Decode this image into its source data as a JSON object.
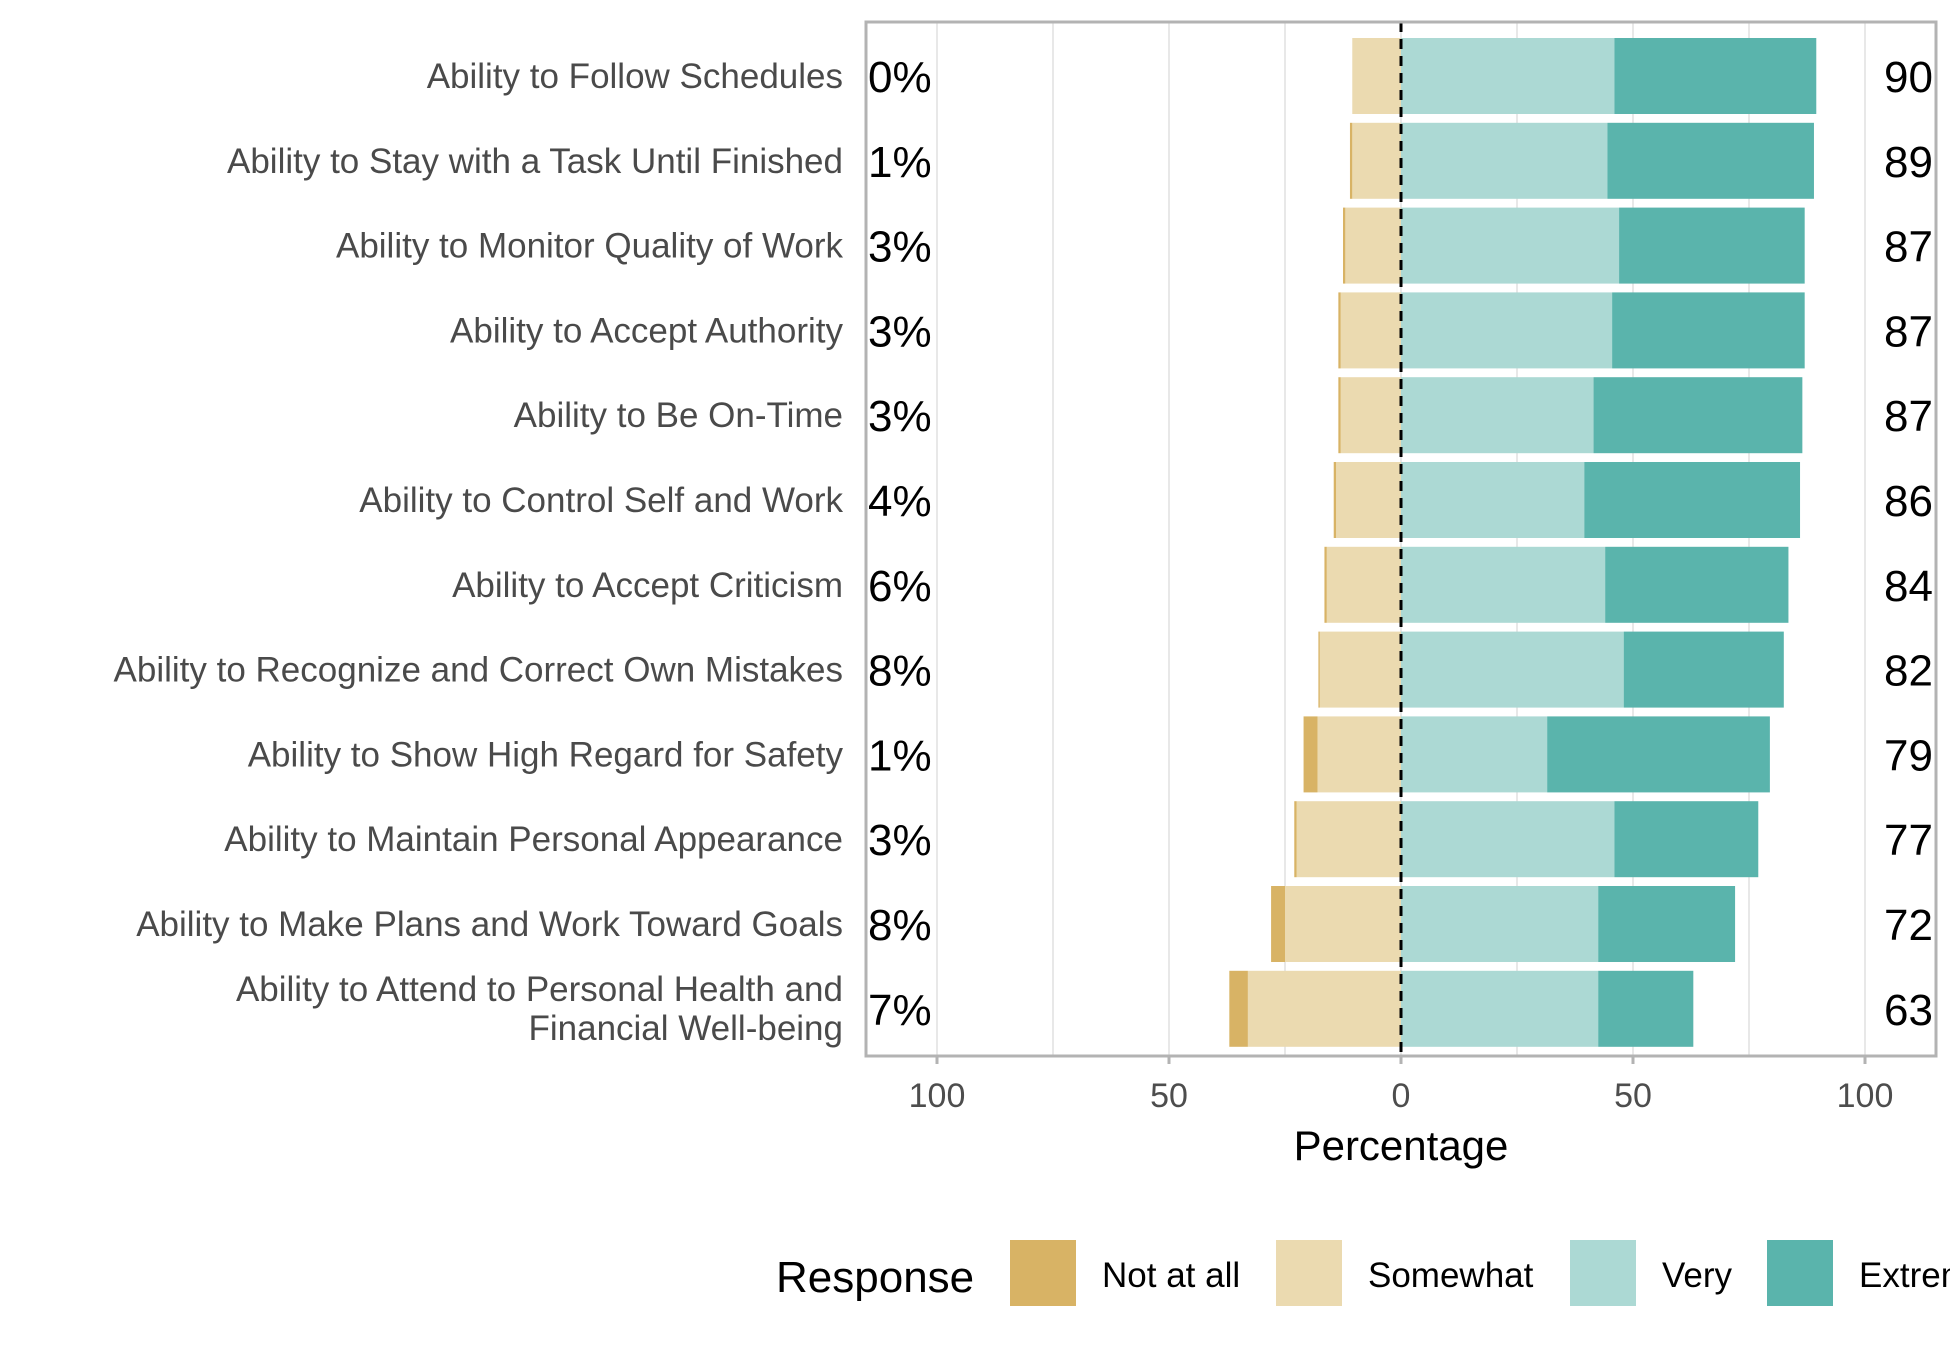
{
  "chart_data": {
    "type": "bar",
    "orientation": "horizontal",
    "stacking": "diverging",
    "xlabel": "Percentage",
    "ylabel": "",
    "xlim": [
      -100,
      100
    ],
    "x_ticks": [
      -100,
      -50,
      0,
      50,
      100
    ],
    "x_tick_labels": [
      "100",
      "50",
      "0",
      "50",
      "100"
    ],
    "grid": true,
    "categories": [
      "Ability to Follow Schedules",
      "Ability to Stay with a Task Until Finished",
      "Ability to Monitor Quality of Work",
      "Ability to Accept Authority",
      "Ability to Be On-Time",
      "Ability to Control Self and Work",
      "Ability to Accept Criticism",
      "Ability to Recognize and Correct Own Mistakes",
      "Ability to Show High Regard for Safety",
      "Ability to Maintain Personal Appearance",
      "Ability to Make Plans and Work Toward Goals",
      "Ability to Attend to Personal Health and Financial Well-being"
    ],
    "series": [
      {
        "name": "Not at all",
        "color": "#d8b365",
        "side": "negative",
        "values": [
          0,
          0.5,
          0.5,
          0.5,
          0.5,
          0.5,
          0.5,
          0.3,
          3,
          0.5,
          3,
          4
        ]
      },
      {
        "name": "Somewhat",
        "color": "#ebdab0",
        "side": "negative",
        "values": [
          10.5,
          10.5,
          12,
          13,
          13,
          14,
          16,
          17.5,
          18,
          22.5,
          25,
          33
        ]
      },
      {
        "name": "Very",
        "color": "#acd9d4",
        "side": "positive",
        "values": [
          46,
          44.5,
          47,
          45.5,
          41.5,
          39.5,
          44,
          48,
          31.5,
          46,
          42.5,
          42.5
        ]
      },
      {
        "name": "Extremely",
        "color": "#5ab4ac",
        "side": "positive",
        "values": [
          43.5,
          44.5,
          40,
          41.5,
          45,
          46.5,
          39.5,
          34.5,
          48,
          31,
          29.5,
          20.5
        ]
      }
    ],
    "left_labels": [
      "0%",
      "1%",
      "3%",
      "3%",
      "3%",
      "4%",
      "6%",
      "8%",
      "1%",
      "3%",
      "8%",
      "7%"
    ],
    "right_labels": [
      "90",
      "89",
      "87",
      "87",
      "87",
      "86",
      "84",
      "82",
      "79",
      "77",
      "72",
      "63"
    ],
    "legend": {
      "title": "Response",
      "position": "bottom",
      "items": [
        "Not at all",
        "Somewhat",
        "Very",
        "Extremely"
      ]
    }
  }
}
